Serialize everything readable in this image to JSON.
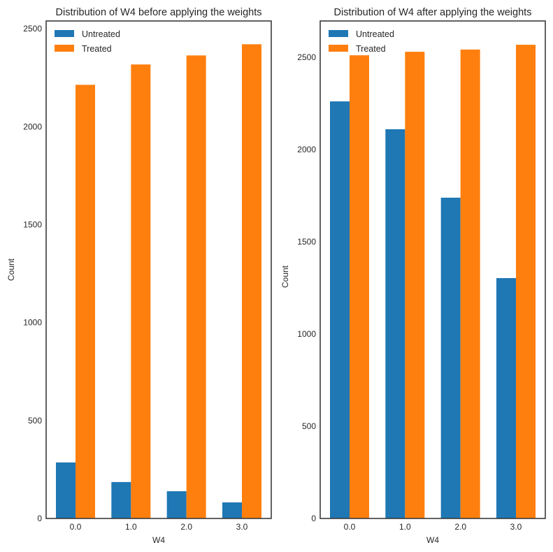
{
  "chart_data": [
    {
      "type": "bar",
      "title": "Distribution of W4 before applying the weights",
      "xlabel": "W4",
      "ylabel": "Count",
      "categories": [
        "0.0",
        "1.0",
        "2.0",
        "3.0"
      ],
      "ylim": [
        0,
        2540
      ],
      "yticks": [
        0,
        500,
        1000,
        1500,
        2000,
        2500
      ],
      "grid": false,
      "legend": "top-left",
      "series": [
        {
          "name": "Untreated",
          "color": "#1f77b4",
          "values": [
            286,
            186,
            139,
            82
          ]
        },
        {
          "name": "Treated",
          "color": "#ff7f0e",
          "values": [
            2214,
            2318,
            2364,
            2421
          ]
        }
      ]
    },
    {
      "type": "bar",
      "title": "Distribution of W4 after applying the weights",
      "xlabel": "W4",
      "ylabel": "Count",
      "categories": [
        "0.0",
        "1.0",
        "2.0",
        "3.0"
      ],
      "ylim": [
        0,
        2697
      ],
      "yticks": [
        0,
        500,
        1000,
        1500,
        2000,
        2500
      ],
      "grid": false,
      "legend": "top-left",
      "series": [
        {
          "name": "Untreated",
          "color": "#1f77b4",
          "values": [
            2261,
            2110,
            1739,
            1303
          ]
        },
        {
          "name": "Treated",
          "color": "#ff7f0e",
          "values": [
            2511,
            2530,
            2542,
            2568
          ]
        }
      ]
    }
  ]
}
